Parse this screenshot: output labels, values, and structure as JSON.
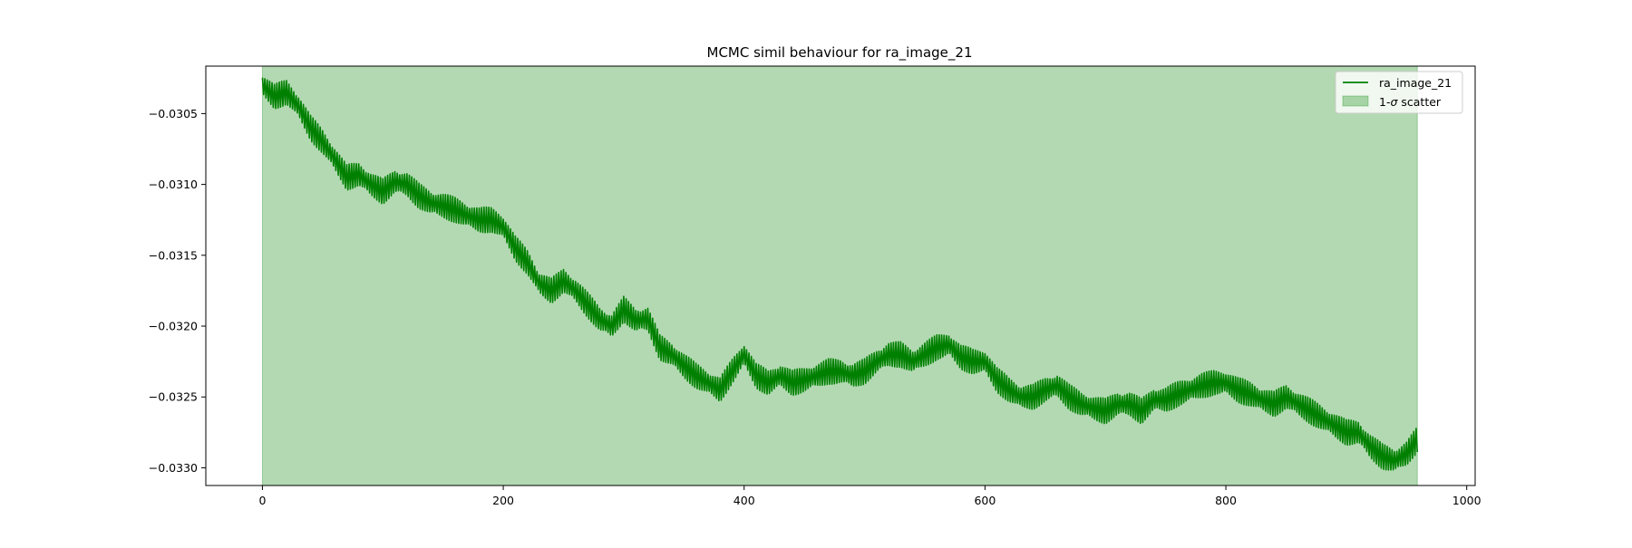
{
  "chart_data": {
    "type": "line",
    "title": "MCMC simil behaviour for ra_image_21",
    "xlabel": "",
    "ylabel": "",
    "xlim": [
      -47,
      1007
    ],
    "ylim": [
      -0.033125,
      -0.030165
    ],
    "x_ticks": [
      0,
      200,
      400,
      600,
      800,
      1000
    ],
    "y_ticks": [
      -0.0305,
      -0.031,
      -0.0315,
      -0.032,
      -0.0325,
      -0.033
    ],
    "x_tick_labels": [
      "0",
      "200",
      "400",
      "600",
      "800",
      "1000"
    ],
    "y_tick_labels": [
      "−0.0305",
      "−0.0310",
      "−0.0315",
      "−0.0320",
      "−0.0325",
      "−0.0330"
    ],
    "grid": false,
    "legend": "top-right",
    "oscillation_amplitude": 9e-05,
    "series": [
      {
        "name": "ra_image_21",
        "color": "#008000",
        "x": [
          0,
          10,
          20,
          30,
          40,
          50,
          60,
          70,
          80,
          90,
          100,
          110,
          120,
          130,
          140,
          150,
          160,
          170,
          180,
          190,
          200,
          210,
          220,
          230,
          240,
          250,
          260,
          270,
          280,
          290,
          300,
          310,
          320,
          330,
          340,
          350,
          360,
          370,
          380,
          390,
          400,
          410,
          420,
          430,
          440,
          450,
          460,
          470,
          480,
          490,
          500,
          510,
          520,
          530,
          540,
          550,
          560,
          570,
          580,
          590,
          600,
          610,
          620,
          630,
          640,
          650,
          660,
          670,
          680,
          690,
          700,
          710,
          720,
          730,
          740,
          750,
          760,
          770,
          780,
          790,
          800,
          810,
          820,
          830,
          840,
          850,
          860,
          870,
          880,
          890,
          900,
          910,
          920,
          930,
          940,
          950,
          959
        ],
        "y": [
          -0.0303,
          -0.03038,
          -0.03035,
          -0.03045,
          -0.0306,
          -0.0307,
          -0.03082,
          -0.03095,
          -0.03093,
          -0.031,
          -0.03105,
          -0.03098,
          -0.031,
          -0.03108,
          -0.03113,
          -0.03115,
          -0.03118,
          -0.03122,
          -0.03125,
          -0.03125,
          -0.0313,
          -0.03145,
          -0.03155,
          -0.0317,
          -0.03175,
          -0.03168,
          -0.03175,
          -0.03185,
          -0.03195,
          -0.032,
          -0.03188,
          -0.03196,
          -0.03195,
          -0.03215,
          -0.0322,
          -0.03228,
          -0.03235,
          -0.0324,
          -0.03245,
          -0.03232,
          -0.0322,
          -0.03235,
          -0.0324,
          -0.03235,
          -0.0324,
          -0.03238,
          -0.03235,
          -0.03232,
          -0.03232,
          -0.03235,
          -0.03232,
          -0.03225,
          -0.0322,
          -0.0322,
          -0.03225,
          -0.0322,
          -0.03215,
          -0.03213,
          -0.03222,
          -0.03225,
          -0.03225,
          -0.03238,
          -0.03245,
          -0.0325,
          -0.0325,
          -0.03245,
          -0.03242,
          -0.0325,
          -0.03255,
          -0.03258,
          -0.0326,
          -0.03255,
          -0.03255,
          -0.0326,
          -0.03252,
          -0.03252,
          -0.03248,
          -0.03245,
          -0.03242,
          -0.0324,
          -0.0324,
          -0.03245,
          -0.03248,
          -0.03252,
          -0.03255,
          -0.0325,
          -0.03255,
          -0.0326,
          -0.03265,
          -0.0327,
          -0.03275,
          -0.03275,
          -0.03285,
          -0.03292,
          -0.03295,
          -0.0329,
          -0.0328
        ]
      }
    ],
    "band": {
      "name": "1-σ scatter",
      "color": "#008000",
      "opacity": 0.3,
      "x_start": 0,
      "x_end": 959,
      "y_low": -0.033125,
      "y_high": -0.030165
    }
  },
  "legend": {
    "line_label": "ra_image_21",
    "band_label_prefix": "1-",
    "band_label_sigma": "σ",
    "band_label_suffix": " scatter"
  }
}
